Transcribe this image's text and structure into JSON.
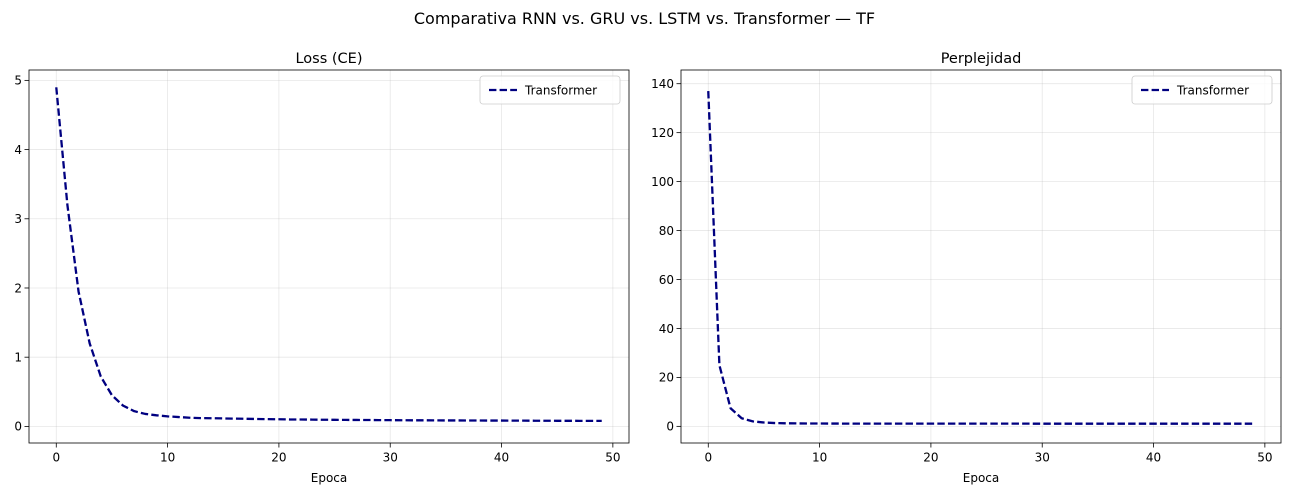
{
  "figure": {
    "suptitle": "Comparativa RNN vs. GRU vs. LSTM vs. Transformer — TF"
  },
  "chart_data": [
    {
      "type": "line",
      "title": "Loss (CE)",
      "xlabel": "Epoca",
      "ylabel": "",
      "xlim": [
        -2.45,
        51.45
      ],
      "ylim": [
        -0.24,
        5.15
      ],
      "xticks": [
        0,
        10,
        20,
        30,
        40,
        50
      ],
      "yticks": [
        0,
        1,
        2,
        3,
        4,
        5
      ],
      "grid": true,
      "legend": "top-right",
      "series": [
        {
          "name": "Transformer",
          "color": "#000080",
          "style": "dashed",
          "x": [
            0,
            1,
            2,
            3,
            4,
            5,
            6,
            7,
            8,
            9,
            10,
            11,
            12,
            13,
            14,
            15,
            16,
            17,
            18,
            19,
            20,
            21,
            22,
            23,
            24,
            25,
            26,
            27,
            28,
            29,
            30,
            31,
            32,
            33,
            34,
            35,
            36,
            37,
            38,
            39,
            40,
            41,
            42,
            43,
            44,
            45,
            46,
            47,
            48,
            49
          ],
          "y": [
            4.9,
            3.2,
            1.95,
            1.2,
            0.72,
            0.45,
            0.3,
            0.22,
            0.18,
            0.16,
            0.145,
            0.135,
            0.125,
            0.12,
            0.118,
            0.115,
            0.112,
            0.11,
            0.107,
            0.105,
            0.103,
            0.1,
            0.1,
            0.098,
            0.096,
            0.095,
            0.094,
            0.093,
            0.092,
            0.091,
            0.09,
            0.089,
            0.088,
            0.088,
            0.087,
            0.086,
            0.086,
            0.085,
            0.085,
            0.084,
            0.084,
            0.083,
            0.083,
            0.082,
            0.082,
            0.081,
            0.081,
            0.08,
            0.08,
            0.08
          ]
        }
      ]
    },
    {
      "type": "line",
      "title": "Perplejidad",
      "xlabel": "Epoca",
      "ylabel": "",
      "xlim": [
        -2.45,
        51.45
      ],
      "ylim": [
        -6.8,
        145.6
      ],
      "xticks": [
        0,
        10,
        20,
        30,
        40,
        50
      ],
      "yticks": [
        0,
        20,
        40,
        60,
        80,
        100,
        120,
        140
      ],
      "grid": true,
      "legend": "top-right",
      "series": [
        {
          "name": "Transformer",
          "color": "#000080",
          "style": "dashed",
          "x": [
            0,
            1,
            2,
            3,
            4,
            5,
            6,
            7,
            8,
            9,
            10,
            11,
            12,
            13,
            14,
            15,
            16,
            17,
            18,
            19,
            20,
            21,
            22,
            23,
            24,
            25,
            26,
            27,
            28,
            29,
            30,
            31,
            32,
            33,
            34,
            35,
            36,
            37,
            38,
            39,
            40,
            41,
            42,
            43,
            44,
            45,
            46,
            47,
            48,
            49
          ],
          "y": [
            137,
            25,
            7.4,
            3.3,
            2.05,
            1.57,
            1.35,
            1.25,
            1.2,
            1.17,
            1.16,
            1.14,
            1.13,
            1.13,
            1.13,
            1.12,
            1.12,
            1.12,
            1.11,
            1.11,
            1.11,
            1.11,
            1.1,
            1.1,
            1.1,
            1.1,
            1.1,
            1.1,
            1.1,
            1.1,
            1.09,
            1.09,
            1.09,
            1.09,
            1.09,
            1.09,
            1.09,
            1.09,
            1.09,
            1.09,
            1.09,
            1.09,
            1.09,
            1.09,
            1.09,
            1.08,
            1.08,
            1.08,
            1.08,
            1.08
          ]
        }
      ]
    }
  ]
}
